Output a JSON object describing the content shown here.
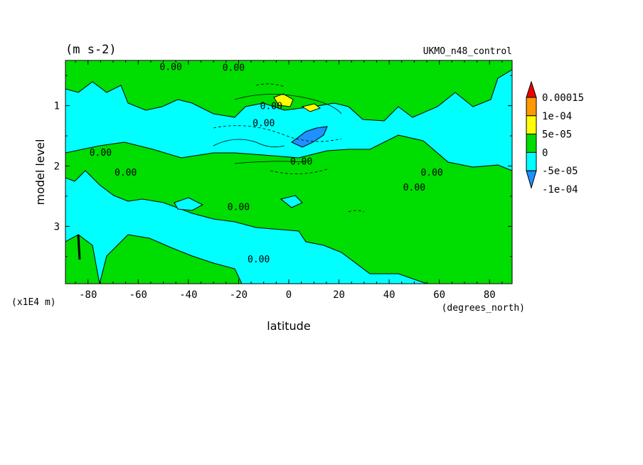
{
  "chart_data": {
    "type": "heatmap",
    "title_left": "(m s-2)",
    "title_right": "UKMO_n48_control",
    "xlabel": "latitude",
    "ylabel": "model level",
    "x_units": "(degrees_north)",
    "y_units": "(x1E4 m)",
    "xlim": [
      -89,
      89
    ],
    "ylim": [
      3.95,
      0.25
    ],
    "x_ticks": [
      -80,
      -60,
      -40,
      -20,
      0,
      20,
      40,
      60,
      80
    ],
    "x_tick_labels": [
      "-80",
      "-60",
      "-40",
      "-20",
      "0",
      "20",
      "40",
      "60",
      "80"
    ],
    "y_ticks": [
      1,
      2,
      3
    ],
    "y_tick_labels": [
      "1",
      "2",
      "3"
    ],
    "colorbar": {
      "levels": [
        -0.0001,
        -5e-05,
        0,
        5e-05,
        0.0001,
        0.00015
      ],
      "labels": [
        "-1e-04",
        "-5e-05",
        "0",
        "5e-05",
        "1e-04",
        "0.00015"
      ],
      "colors": [
        "#1e90ff",
        "#00ffff",
        "#00dd00",
        "#ffff00",
        "#ff9900",
        "#ee0000"
      ]
    },
    "contour_labels": [
      {
        "text": "0.00",
        "x": -47,
        "y": 0.35
      },
      {
        "text": "0.00",
        "x": -22,
        "y": 0.36
      },
      {
        "text": "0.00",
        "x": -7,
        "y": 1.0
      },
      {
        "text": "0.00",
        "x": -10,
        "y": 1.28
      },
      {
        "text": "0.00",
        "x": -75,
        "y": 1.77
      },
      {
        "text": "0.00",
        "x": -65,
        "y": 2.1
      },
      {
        "text": "0.00",
        "x": 5,
        "y": 1.92
      },
      {
        "text": "0.00",
        "x": -20,
        "y": 2.67
      },
      {
        "text": "0.00",
        "x": -12,
        "y": 3.54
      },
      {
        "text": "0.00",
        "x": 50,
        "y": 2.35
      },
      {
        "text": "0.00",
        "x": 57,
        "y": 2.1
      }
    ],
    "regions": [
      {
        "level": "-5e-05",
        "x": [
          -89,
          89
        ],
        "y": [
          0.25,
          3.95
        ]
      },
      {
        "level": "0",
        "x": [
          -89,
          89
        ],
        "y": [
          0.25,
          3.95
        ]
      },
      {
        "level": "5e-05",
        "x": [
          -3,
          12
        ],
        "y": [
          0.82,
          0.92
        ]
      },
      {
        "level": "-1e-04",
        "x": [
          4,
          16
        ],
        "y": [
          1.15,
          1.55
        ]
      }
    ]
  }
}
